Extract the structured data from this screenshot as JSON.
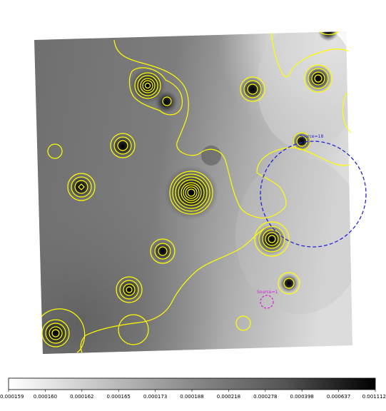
{
  "image": {
    "colors": {
      "contour": "#ffff00",
      "region_blue": "#2323d6",
      "region_magenta": "#d21fd2",
      "background": "#ffffff"
    }
  },
  "regions": [
    {
      "name": "blue-dashed-circle",
      "label": "Source=18",
      "style": "dashed",
      "color": "#2323d6"
    },
    {
      "name": "magenta-dashed-circle",
      "label": "Source=1",
      "style": "dashed",
      "color": "#d21fd2"
    }
  ],
  "colorbar": {
    "gradient": [
      "#ffffff",
      "#000000"
    ],
    "ticks": [
      "0.000159",
      "0.000160",
      "0.000162",
      "0.000165",
      "0.000173",
      "0.000188",
      "0.000218",
      "0.000278",
      "0.000398",
      "0.000637",
      "0.001112"
    ]
  }
}
